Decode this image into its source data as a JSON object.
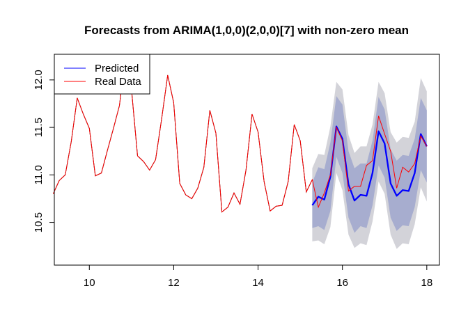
{
  "chart_data": {
    "type": "line",
    "title": "Forecasts from ARIMA(1,0,0)(2,0,0)[7] with non-zero mean",
    "xlabel": "",
    "ylabel": "",
    "xlim": [
      9.17,
      18.3
    ],
    "ylim": [
      10.05,
      12.27
    ],
    "x_ticks": [
      10,
      12,
      14,
      16,
      18
    ],
    "y_ticks": [
      10.5,
      11.0,
      11.5,
      12.0
    ],
    "x_tick_labels": [
      "10",
      "12",
      "14",
      "16",
      "18"
    ],
    "y_tick_labels": [
      "10.5",
      "11.0",
      "11.5",
      "12.0"
    ],
    "grid": false,
    "legend": {
      "position": "top-left",
      "entries": [
        {
          "label": "Predicted",
          "color": "#0000ff"
        },
        {
          "label": "Real Data",
          "color": "#ff0000"
        }
      ]
    },
    "history": {
      "color": "#000000",
      "x": [
        9.143,
        9.286,
        9.429,
        9.571,
        9.714,
        9.857,
        10.0,
        10.143,
        10.286,
        10.429,
        10.571,
        10.714,
        10.857,
        11.0,
        11.143,
        11.286,
        11.429,
        11.571,
        11.714,
        11.857,
        12.0,
        12.143,
        12.286,
        12.429,
        12.571,
        12.714,
        12.857,
        13.0,
        13.143,
        13.286,
        13.429,
        13.571,
        13.714,
        13.857,
        14.0,
        14.143,
        14.286,
        14.429,
        14.571,
        14.714,
        14.857,
        15.0,
        15.143,
        15.286
      ],
      "values": [
        10.8,
        10.94,
        11.0,
        11.35,
        11.81,
        11.64,
        11.49,
        10.99,
        11.02,
        11.26,
        11.49,
        11.73,
        12.25,
        11.9,
        11.2,
        11.14,
        11.05,
        11.16,
        11.59,
        12.05,
        11.76,
        10.91,
        10.79,
        10.75,
        10.86,
        11.08,
        11.68,
        11.44,
        10.61,
        10.66,
        10.81,
        10.69,
        11.05,
        11.64,
        11.45,
        10.93,
        10.62,
        10.67,
        10.68,
        10.93,
        11.53,
        11.36,
        10.82,
        10.95
      ]
    },
    "forecast": {
      "x": [
        15.286,
        15.429,
        15.571,
        15.714,
        15.857,
        16.0,
        16.143,
        16.286,
        16.429,
        16.571,
        16.714,
        16.857,
        17.0,
        17.143,
        17.286,
        17.429,
        17.571,
        17.714,
        17.857,
        18.0
      ],
      "mean": [
        10.68,
        10.77,
        10.74,
        10.98,
        11.51,
        11.38,
        10.9,
        10.73,
        10.79,
        10.78,
        11.02,
        11.46,
        11.33,
        10.91,
        10.78,
        10.84,
        10.83,
        11.02,
        11.43,
        11.3
      ],
      "lo80": [
        10.44,
        10.46,
        10.42,
        10.62,
        11.19,
        11.02,
        10.55,
        10.39,
        10.46,
        10.44,
        10.68,
        11.1,
        10.97,
        10.55,
        10.41,
        10.47,
        10.46,
        10.66,
        11.05,
        10.92
      ],
      "hi80": [
        10.92,
        11.08,
        11.06,
        11.34,
        11.83,
        11.74,
        11.25,
        11.07,
        11.12,
        11.12,
        11.36,
        11.82,
        11.69,
        11.27,
        11.15,
        11.21,
        11.2,
        11.38,
        11.81,
        11.68
      ],
      "lo95": [
        10.3,
        10.31,
        10.27,
        10.45,
        11.02,
        10.84,
        10.37,
        10.23,
        10.28,
        10.26,
        10.51,
        10.93,
        10.8,
        10.37,
        10.22,
        10.28,
        10.27,
        10.48,
        10.87,
        10.72
      ],
      "hi95": [
        11.07,
        11.22,
        11.21,
        11.51,
        11.98,
        11.9,
        11.42,
        11.23,
        11.3,
        11.3,
        11.53,
        11.98,
        11.86,
        11.45,
        11.34,
        11.4,
        11.39,
        11.56,
        12.02,
        11.88
      ],
      "band80_color": "#a7adcf",
      "band95_color": "#d3d3d9"
    },
    "series": [
      {
        "name": "Predicted",
        "color": "#0000ff",
        "x": [
          15.286,
          15.429,
          15.571,
          15.714,
          15.857,
          16.0,
          16.143,
          16.286,
          16.429,
          16.571,
          16.714,
          16.857,
          17.0,
          17.143,
          17.286,
          17.429,
          17.571,
          17.714,
          17.857,
          18.0
        ],
        "values": [
          10.68,
          10.77,
          10.74,
          10.98,
          11.51,
          11.38,
          10.9,
          10.73,
          10.79,
          10.78,
          11.02,
          11.46,
          11.33,
          10.91,
          10.78,
          10.84,
          10.83,
          11.02,
          11.43,
          11.3
        ]
      },
      {
        "name": "Real Data",
        "color": "#ff0000",
        "x": [
          9.143,
          9.286,
          9.429,
          9.571,
          9.714,
          9.857,
          10.0,
          10.143,
          10.286,
          10.429,
          10.571,
          10.714,
          10.857,
          11.0,
          11.143,
          11.286,
          11.429,
          11.571,
          11.714,
          11.857,
          12.0,
          12.143,
          12.286,
          12.429,
          12.571,
          12.714,
          12.857,
          13.0,
          13.143,
          13.286,
          13.429,
          13.571,
          13.714,
          13.857,
          14.0,
          14.143,
          14.286,
          14.429,
          14.571,
          14.714,
          14.857,
          15.0,
          15.143,
          15.286,
          15.429,
          15.571,
          15.714,
          15.857,
          16.0,
          16.143,
          16.286,
          16.429,
          16.571,
          16.714,
          16.857,
          17.0,
          17.143,
          17.286,
          17.429,
          17.571,
          17.714,
          17.857,
          18.0
        ],
        "values": [
          10.8,
          10.94,
          11.0,
          11.35,
          11.81,
          11.64,
          11.49,
          10.99,
          11.02,
          11.26,
          11.49,
          11.73,
          12.25,
          11.9,
          11.2,
          11.14,
          11.05,
          11.16,
          11.59,
          12.05,
          11.76,
          10.91,
          10.79,
          10.75,
          10.86,
          11.08,
          11.68,
          11.44,
          10.61,
          10.66,
          10.81,
          10.69,
          11.05,
          11.64,
          11.45,
          10.93,
          10.62,
          10.67,
          10.68,
          10.93,
          11.53,
          11.36,
          10.82,
          10.95,
          10.66,
          10.81,
          11.0,
          11.5,
          11.36,
          10.83,
          10.88,
          10.88,
          11.1,
          11.15,
          11.62,
          11.43,
          11.25,
          10.86,
          11.08,
          11.03,
          11.12,
          11.41,
          11.3
        ]
      }
    ]
  }
}
